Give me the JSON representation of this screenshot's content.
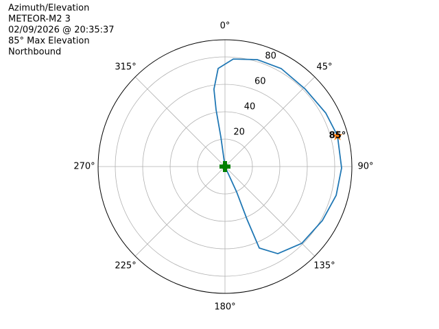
{
  "chart_data": {
    "type": "polar",
    "title_lines": [
      "Azimuth/Elevation",
      "METEOR-M2 3",
      "02/09/2026 @ 20:35:37",
      "85° Max Elevation",
      "Northbound"
    ],
    "theta_direction": "clockwise",
    "theta_zero": "N",
    "rlim": [
      0,
      92.5
    ],
    "rticks": [
      20,
      40,
      60,
      80
    ],
    "thetaticks": [
      {
        "value": 0,
        "label": "0°"
      },
      {
        "value": 45,
        "label": "45°"
      },
      {
        "value": 90,
        "label": "90°"
      },
      {
        "value": 135,
        "label": "135°"
      },
      {
        "value": 180,
        "label": "180°"
      },
      {
        "value": 225,
        "label": "225°"
      },
      {
        "value": 270,
        "label": "270°"
      },
      {
        "value": 315,
        "label": "315°"
      }
    ],
    "grid": true,
    "series": [
      {
        "color": "#1f77b4",
        "x": [
          0,
          352.1,
          351.1,
          351.9,
          356,
          4.4,
          16.8,
          29.8,
          46,
          62,
          74.7,
          90.7,
          104.5,
          119,
          135,
          148.8,
          157.2,
          157.4,
          155.3,
          0
        ],
        "values": [
          0,
          21.7,
          42,
          57,
          71.7,
          78.7,
          81.5,
          82.4,
          81.3,
          83.2,
          85,
          85,
          83.7,
          81.2,
          79.2,
          74.3,
          64.5,
          41.7,
          20.4,
          0
        ]
      }
    ],
    "start_marker": {
      "x": 0,
      "value": 0,
      "color": "#008000"
    },
    "max_marker": {
      "x": 74.7,
      "value": 85,
      "color": "#ff7f0e",
      "label": "85°"
    }
  }
}
